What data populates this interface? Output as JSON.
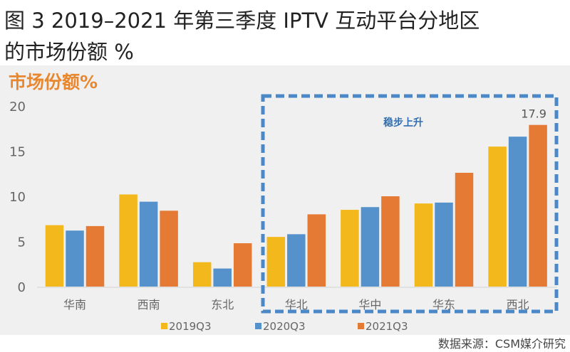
{
  "title": {
    "line1": "图 3 2019–2021 年第三季度 IPTV 互动平台分地区",
    "line2": "的市场份额 %"
  },
  "source": "数据来源：CSM媒介研究",
  "chart_data": {
    "type": "bar",
    "title": "市场份额%",
    "xlabel": "",
    "ylabel": "",
    "ylim": [
      0,
      20
    ],
    "yticks": [
      0,
      5,
      10,
      15,
      20
    ],
    "grid": false,
    "legend_position": "bottom",
    "categories": [
      "华南",
      "西南",
      "东北",
      "华北",
      "华中",
      "华东",
      "西北"
    ],
    "series": [
      {
        "name": "2019Q3",
        "color": "#f3b81b",
        "values": [
          6.8,
          10.2,
          2.7,
          5.5,
          8.5,
          9.2,
          15.5
        ]
      },
      {
        "name": "2020Q3",
        "color": "#5592cc",
        "values": [
          6.2,
          9.4,
          2.0,
          5.8,
          8.8,
          9.3,
          16.6
        ]
      },
      {
        "name": "2021Q3",
        "color": "#e57a35",
        "values": [
          6.7,
          8.4,
          4.8,
          8.0,
          10.0,
          12.6,
          17.9
        ]
      }
    ],
    "data_labels": [
      {
        "category": "西北",
        "series": "2021Q3",
        "text": "17.9"
      }
    ],
    "annotation": {
      "text": "稳步上升",
      "categories": [
        "华北",
        "华中",
        "华东",
        "西北"
      ],
      "color": "#4a88c7"
    }
  }
}
